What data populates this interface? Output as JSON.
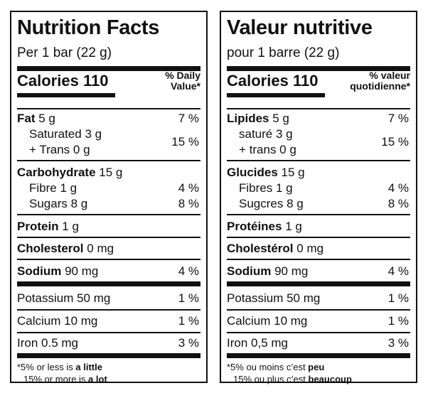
{
  "en": {
    "title": "Nutrition Facts",
    "per": "Per 1 bar (22 g)",
    "calories_label": "Calories",
    "calories_value": "110",
    "dv_line1": "% Daily",
    "dv_line2": "Value*",
    "fat_label": "Fat",
    "fat_amount": "5 g",
    "fat_dv": "7 %",
    "sat_label": "Saturated 3 g",
    "trans_label": "+ Trans 0 g",
    "sat_trans_dv": "15 %",
    "carb_label": "Carbohydrate",
    "carb_amount": "15 g",
    "fibre_label": "Fibre 1 g",
    "fibre_dv": "4 %",
    "sugars_label": "Sugars 8 g",
    "sugars_dv": "8 %",
    "protein_label": "Protein",
    "protein_amount": "1 g",
    "chol_label": "Cholesterol",
    "chol_amount": "0 mg",
    "sodium_label": "Sodium",
    "sodium_amount": "90 mg",
    "sodium_dv": "4 %",
    "potassium_label": "Potassium 50 mg",
    "potassium_dv": "1 %",
    "calcium_label": "Calcium 10 mg",
    "calcium_dv": "1 %",
    "iron_label": "Iron 0.5 mg",
    "iron_dv": "3 %",
    "fn1_a": "*5% or less is ",
    "fn1_b": "a little",
    "fn2_a": "15% or more is ",
    "fn2_b": "a lot"
  },
  "fr": {
    "title": "Valeur nutritive",
    "per": "pour 1 barre (22 g)",
    "calories_label": "Calories",
    "calories_value": "110",
    "dv_line1": "% valeur",
    "dv_line2": "quotidienne*",
    "fat_label": "Lipides",
    "fat_amount": "5 g",
    "fat_dv": "7 %",
    "sat_label": "saturé 3 g",
    "trans_label": "+ trans 0 g",
    "sat_trans_dv": "15 %",
    "carb_label": "Glucides",
    "carb_amount": "15 g",
    "fibre_label": "Fibres 1 g",
    "fibre_dv": "4 %",
    "sugars_label": "Sugcres 8 g",
    "sugars_dv": "8 %",
    "protein_label": "Protéines",
    "protein_amount": "1 g",
    "chol_label": "Cholestérol",
    "chol_amount": "0 mg",
    "sodium_label": "Sodium",
    "sodium_amount": "90 mg",
    "sodium_dv": "4 %",
    "potassium_label": "Potassium 50 mg",
    "potassium_dv": "1 %",
    "calcium_label": "Calcium 10 mg",
    "calcium_dv": "1 %",
    "iron_label": "Iron 0,5 mg",
    "iron_dv": "3 %",
    "fn1_a": "*5% ou moins c’est ",
    "fn1_b": "peu",
    "fn2_a": "15% ou plus c’est ",
    "fn2_b": "beaucoup"
  }
}
